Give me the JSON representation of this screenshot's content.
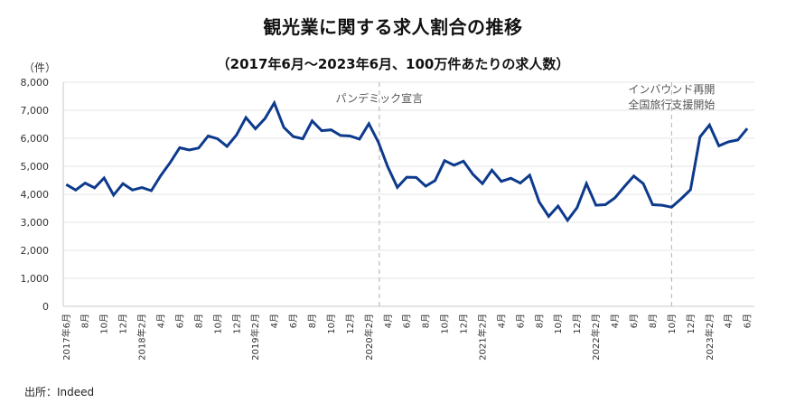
{
  "header": {
    "title": "観光業に関する求人割合の推移",
    "subtitle": "（2017年6月～2023年6月、100万件あたりの求人数）"
  },
  "axis": {
    "y_unit": "（件）"
  },
  "footer": {
    "source": "出所：Indeed"
  },
  "colors": {
    "line": "#0d3a8c",
    "grid": "#e6e6e6",
    "axis": "#c8c8c8",
    "annotation_line": "#b0b0b0"
  },
  "chart_data": {
    "type": "line",
    "title": "観光業に関する求人割合の推移",
    "subtitle": "（2017年6月～2023年6月、100万件あたりの求人数）",
    "xlabel": "",
    "ylabel": "（件）",
    "ylim": [
      0,
      8000
    ],
    "yticks": [
      0,
      1000,
      2000,
      3000,
      4000,
      5000,
      6000,
      7000,
      8000
    ],
    "ytick_labels": [
      "0",
      "1,000",
      "2,000",
      "3,000",
      "4,000",
      "5,000",
      "6,000",
      "7,000",
      "8,000"
    ],
    "grid": true,
    "legend": "none",
    "x": [
      "2017-06",
      "2017-07",
      "2017-08",
      "2017-09",
      "2017-10",
      "2017-11",
      "2017-12",
      "2018-01",
      "2018-02",
      "2018-03",
      "2018-04",
      "2018-05",
      "2018-06",
      "2018-07",
      "2018-08",
      "2018-09",
      "2018-10",
      "2018-11",
      "2018-12",
      "2019-01",
      "2019-02",
      "2019-03",
      "2019-04",
      "2019-05",
      "2019-06",
      "2019-07",
      "2019-08",
      "2019-09",
      "2019-10",
      "2019-11",
      "2019-12",
      "2020-01",
      "2020-02",
      "2020-03",
      "2020-04",
      "2020-05",
      "2020-06",
      "2020-07",
      "2020-08",
      "2020-09",
      "2020-10",
      "2020-11",
      "2020-12",
      "2021-01",
      "2021-02",
      "2021-03",
      "2021-04",
      "2021-05",
      "2021-06",
      "2021-07",
      "2021-08",
      "2021-09",
      "2021-10",
      "2021-11",
      "2021-12",
      "2022-01",
      "2022-02",
      "2022-03",
      "2022-04",
      "2022-05",
      "2022-06",
      "2022-07",
      "2022-08",
      "2022-09",
      "2022-10",
      "2022-11",
      "2022-12",
      "2023-01",
      "2023-02",
      "2023-03",
      "2023-04",
      "2023-05",
      "2023-06"
    ],
    "series": [
      {
        "name": "100万件あたりの求人数",
        "values": [
          4350,
          4150,
          4400,
          4230,
          4580,
          3970,
          4380,
          4150,
          4240,
          4130,
          4670,
          5140,
          5660,
          5580,
          5650,
          6080,
          5980,
          5710,
          6120,
          6740,
          6340,
          6700,
          7260,
          6390,
          6060,
          5980,
          6620,
          6270,
          6300,
          6100,
          6080,
          5970,
          6520,
          5860,
          4970,
          4250,
          4610,
          4600,
          4290,
          4490,
          5200,
          5040,
          5180,
          4710,
          4380,
          4860,
          4460,
          4570,
          4400,
          4680,
          3730,
          3210,
          3580,
          3070,
          3520,
          4380,
          3610,
          3630,
          3870,
          4270,
          4650,
          4380,
          3630,
          3610,
          3540,
          3840,
          4160,
          6050,
          6470,
          5730,
          5870,
          5940,
          6350
        ]
      }
    ],
    "xtick_labels": [
      {
        "index": 0,
        "label": "2017年6月"
      },
      {
        "index": 2,
        "label": "8月"
      },
      {
        "index": 4,
        "label": "10月"
      },
      {
        "index": 6,
        "label": "12月"
      },
      {
        "index": 8,
        "label": "2018年2月"
      },
      {
        "index": 10,
        "label": "4月"
      },
      {
        "index": 12,
        "label": "6月"
      },
      {
        "index": 14,
        "label": "8月"
      },
      {
        "index": 16,
        "label": "10月"
      },
      {
        "index": 18,
        "label": "12月"
      },
      {
        "index": 20,
        "label": "2019年2月"
      },
      {
        "index": 22,
        "label": "4月"
      },
      {
        "index": 24,
        "label": "6月"
      },
      {
        "index": 26,
        "label": "8月"
      },
      {
        "index": 28,
        "label": "10月"
      },
      {
        "index": 30,
        "label": "12月"
      },
      {
        "index": 32,
        "label": "2020年2月"
      },
      {
        "index": 34,
        "label": "4月"
      },
      {
        "index": 36,
        "label": "6月"
      },
      {
        "index": 38,
        "label": "8月"
      },
      {
        "index": 40,
        "label": "10月"
      },
      {
        "index": 42,
        "label": "12月"
      },
      {
        "index": 44,
        "label": "2021年2月"
      },
      {
        "index": 46,
        "label": "4月"
      },
      {
        "index": 48,
        "label": "6月"
      },
      {
        "index": 50,
        "label": "8月"
      },
      {
        "index": 52,
        "label": "10月"
      },
      {
        "index": 54,
        "label": "12月"
      },
      {
        "index": 56,
        "label": "2022年2月"
      },
      {
        "index": 58,
        "label": "4月"
      },
      {
        "index": 60,
        "label": "6月"
      },
      {
        "index": 62,
        "label": "8月"
      },
      {
        "index": 64,
        "label": "10月"
      },
      {
        "index": 66,
        "label": "12月"
      },
      {
        "index": 68,
        "label": "2023年2月"
      },
      {
        "index": 70,
        "label": "4月"
      },
      {
        "index": 72,
        "label": "6月"
      }
    ],
    "annotations": [
      {
        "index": 33.1,
        "lines": [
          "パンデミック宣言"
        ],
        "style": "dashed-vertical"
      },
      {
        "index": 64,
        "lines": [
          "インバウンド再開",
          "全国旅行支援開始"
        ],
        "style": "dashed-vertical"
      }
    ],
    "source": "出所：Indeed"
  }
}
